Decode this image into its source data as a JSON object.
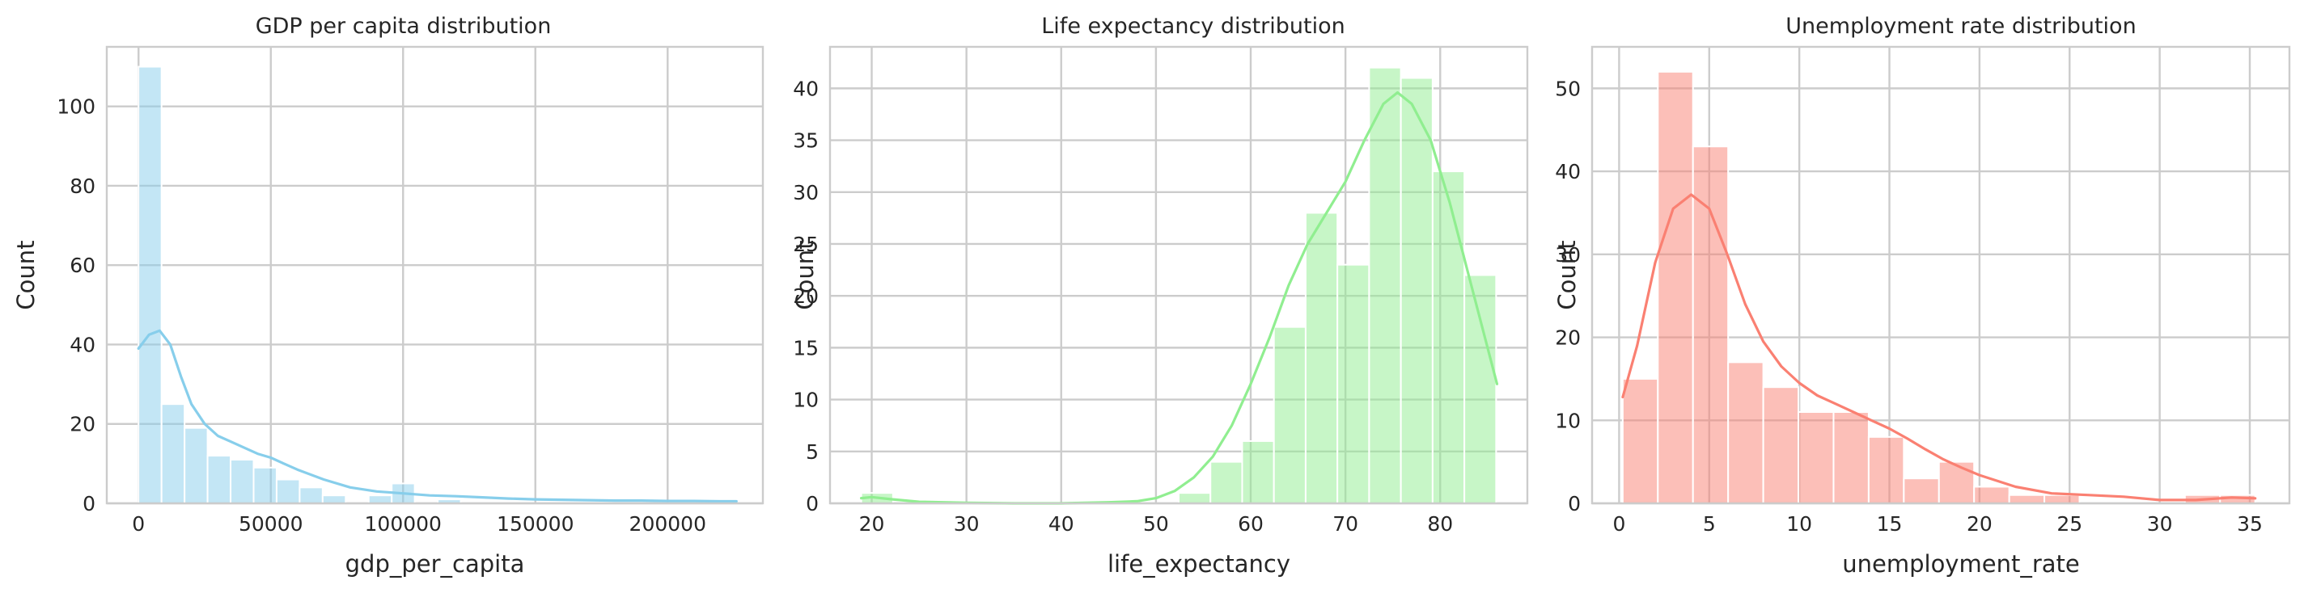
{
  "chart_data": [
    {
      "type": "histogram",
      "title": "GDP per capita distribution",
      "xlabel": "gdp_per_capita",
      "ylabel": "Count",
      "xlim": [
        -12000,
        236000
      ],
      "ylim": [
        0,
        115
      ],
      "xticks": [
        0,
        50000,
        100000,
        150000,
        200000
      ],
      "xtick_labels": [
        "0",
        "50000",
        "100000",
        "150000",
        "200000"
      ],
      "yticks": [
        0,
        20,
        40,
        60,
        80,
        100
      ],
      "ytick_labels": [
        "0",
        "20",
        "40",
        "60",
        "80",
        "100"
      ],
      "grid": true,
      "color": "#87ceeb",
      "bin_start": 0,
      "bin_width": 8700,
      "values": [
        110,
        25,
        19,
        12,
        11,
        9,
        6,
        4,
        2,
        0,
        2,
        5,
        0,
        1,
        0,
        0,
        0,
        0,
        0,
        0,
        0,
        0,
        0,
        0,
        0,
        1
      ],
      "kde_x": [
        0,
        4000,
        8000,
        12000,
        16000,
        20000,
        25000,
        30000,
        35000,
        40000,
        45000,
        50000,
        55000,
        60000,
        70000,
        80000,
        90000,
        100000,
        110000,
        120000,
        130000,
        140000,
        150000,
        160000,
        170000,
        180000,
        190000,
        200000,
        210000,
        220000,
        226000
      ],
      "kde_y": [
        39,
        42.5,
        43.5,
        40,
        32,
        25,
        20,
        17,
        15.5,
        14,
        12.5,
        11.5,
        10,
        8.5,
        6,
        4,
        3,
        2.5,
        2,
        1.8,
        1.5,
        1.2,
        1.0,
        0.9,
        0.8,
        0.7,
        0.7,
        0.6,
        0.6,
        0.5,
        0.5
      ]
    },
    {
      "type": "histogram",
      "title": "Life expectancy distribution",
      "xlabel": "life_expectancy",
      "ylabel": "Count",
      "xlim": [
        15.6,
        89.2
      ],
      "ylim": [
        0,
        44
      ],
      "xticks": [
        20,
        30,
        40,
        50,
        60,
        70,
        80
      ],
      "xtick_labels": [
        "20",
        "30",
        "40",
        "50",
        "60",
        "70",
        "80"
      ],
      "yticks": [
        0,
        5,
        10,
        15,
        20,
        25,
        30,
        35,
        40
      ],
      "ytick_labels": [
        "0",
        "5",
        "10",
        "15",
        "20",
        "25",
        "30",
        "35",
        "40"
      ],
      "grid": true,
      "color": "#90ee90",
      "bin_start": 18.9,
      "bin_width": 3.35,
      "values": [
        1,
        0,
        0,
        0,
        0,
        0,
        0,
        0,
        0,
        0,
        1,
        4,
        6,
        17,
        28,
        23,
        42,
        41,
        32,
        22
      ],
      "kde_x": [
        18.9,
        20,
        22,
        25,
        30,
        35,
        40,
        45,
        48,
        50,
        52,
        54,
        56,
        58,
        60,
        62,
        64,
        66,
        68,
        70,
        72,
        74,
        75.5,
        77,
        79,
        81,
        83,
        85,
        86
      ],
      "kde_y": [
        0.5,
        0.6,
        0.4,
        0.15,
        0.05,
        0,
        0,
        0.1,
        0.2,
        0.5,
        1.2,
        2.5,
        4.5,
        7.5,
        11.5,
        16,
        21,
        25,
        28,
        31,
        35,
        38.5,
        39.6,
        38.5,
        35,
        29,
        22,
        15,
        11.5
      ]
    },
    {
      "type": "histogram",
      "title": "Unemployment rate distribution",
      "xlabel": "unemployment_rate",
      "ylabel": "Count",
      "xlim": [
        -1.5,
        37.2
      ],
      "ylim": [
        0,
        55
      ],
      "xticks": [
        0,
        5,
        10,
        15,
        20,
        25,
        30,
        35
      ],
      "xtick_labels": [
        "0",
        "5",
        "10",
        "15",
        "20",
        "25",
        "30",
        "35"
      ],
      "yticks": [
        0,
        10,
        20,
        30,
        40,
        50
      ],
      "ytick_labels": [
        "0",
        "10",
        "20",
        "30",
        "40",
        "50"
      ],
      "grid": true,
      "color": "#fa8072",
      "bin_start": 0.2,
      "bin_width": 1.95,
      "values": [
        15,
        52,
        43,
        17,
        14,
        11,
        11,
        8,
        3,
        5,
        2,
        1,
        1,
        0,
        0,
        0,
        1,
        1
      ],
      "kde_x": [
        0.2,
        1,
        2,
        3,
        4,
        5,
        6,
        7,
        8,
        9,
        10,
        11,
        12,
        13,
        14,
        15,
        16,
        17,
        18,
        19,
        20,
        22,
        24,
        26,
        28,
        30,
        32,
        34,
        35.3
      ],
      "kde_y": [
        12.8,
        19,
        29,
        35.5,
        37.2,
        35.5,
        30,
        24,
        19.5,
        16.5,
        14.5,
        13,
        12,
        11,
        10,
        9,
        7.8,
        6.5,
        5.3,
        4.3,
        3.4,
        2,
        1.2,
        1,
        0.8,
        0.4,
        0.4,
        0.7,
        0.6
      ]
    }
  ]
}
